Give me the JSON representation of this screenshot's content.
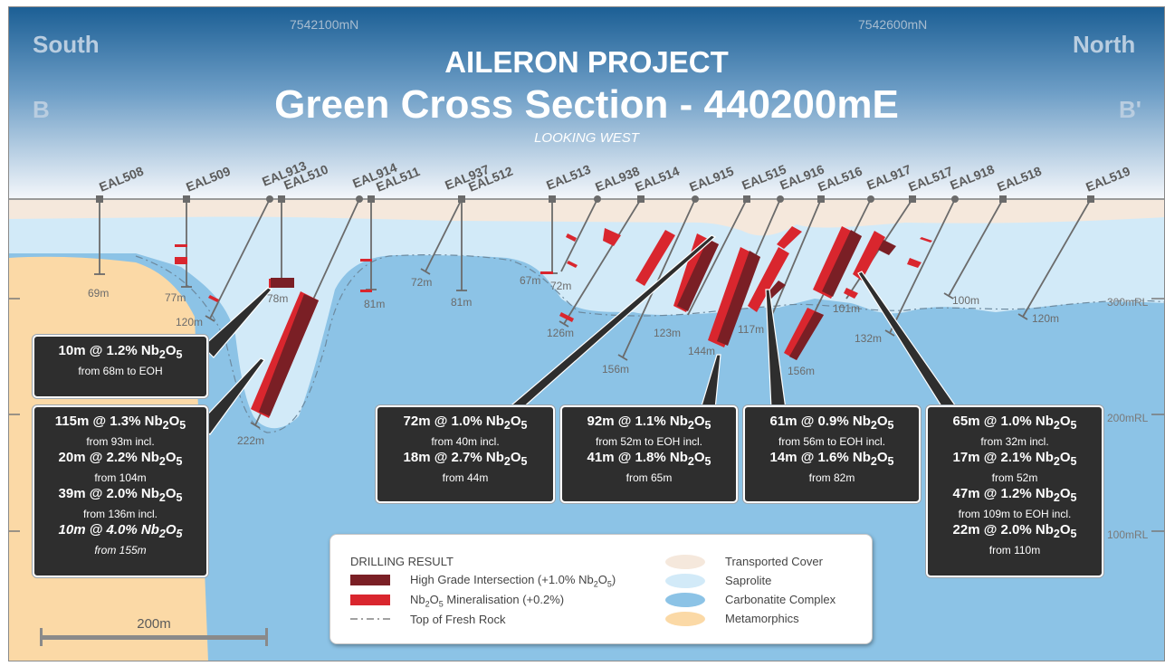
{
  "title": {
    "line1": "AILERON PROJECT",
    "line2": "Green Cross Section - 440200mE",
    "subtitle": "LOOKING WEST"
  },
  "orientation": {
    "south": "South",
    "north": "North",
    "left_point": "B",
    "right_point": "B'"
  },
  "northings": [
    "7542100mN",
    "7542600mN"
  ],
  "elevations": [
    "300mRL",
    "200mRL",
    "100mRL"
  ],
  "holes": [
    {
      "id": "EAL508",
      "depth": "69m"
    },
    {
      "id": "EAL509",
      "depth": "77m"
    },
    {
      "id": "EAL913",
      "depth": "120m"
    },
    {
      "id": "EAL510",
      "depth": "78m"
    },
    {
      "id": "EAL914",
      "depth": "222m"
    },
    {
      "id": "EAL511",
      "depth": "81m"
    },
    {
      "id": "EAL937",
      "depth": "72m"
    },
    {
      "id": "EAL512",
      "depth": "81m"
    },
    {
      "id": "EAL513",
      "depth": "67m"
    },
    {
      "id": "EAL938",
      "depth": "72m"
    },
    {
      "id": "EAL514",
      "depth": "126m"
    },
    {
      "id": "EAL915",
      "depth": "156m"
    },
    {
      "id": "EAL515",
      "depth": "123m"
    },
    {
      "id": "EAL916",
      "depth": "144m"
    },
    {
      "id": "EAL516",
      "depth": "117m"
    },
    {
      "id": "EAL917",
      "depth": "156m"
    },
    {
      "id": "EAL517",
      "depth": "101m"
    },
    {
      "id": "EAL918",
      "depth": "132m"
    },
    {
      "id": "EAL518",
      "depth": "100m"
    },
    {
      "id": "EAL519",
      "depth": "120m"
    }
  ],
  "results": {
    "box1": {
      "l1": "10m @ 1.2% Nb",
      "l1s": "2",
      "l1o": "O",
      "l1s2": "5",
      "f1": "from 68m to EOH"
    },
    "box2": {
      "rows": [
        {
          "m": "115m @ 1.3% Nb",
          "f": "from 93m incl."
        },
        {
          "m": "20m @ 2.2% Nb",
          "f": "from 104m"
        },
        {
          "m": "39m @ 2.0% Nb",
          "f": "from 136m incl."
        },
        {
          "m": "10m @ 4.0% Nb",
          "f": "from 155m"
        }
      ]
    },
    "box3": {
      "rows": [
        {
          "m": "72m @ 1.0% Nb",
          "f": "from 40m incl."
        },
        {
          "m": "18m @ 2.7% Nb",
          "f": "from 44m"
        }
      ]
    },
    "box4": {
      "rows": [
        {
          "m": "92m @ 1.1% Nb",
          "f": "from 52m to EOH incl."
        },
        {
          "m": "41m @ 1.8% Nb",
          "f": "from 65m"
        }
      ]
    },
    "box5": {
      "rows": [
        {
          "m": "61m @ 0.9% Nb",
          "f": "from 56m to EOH incl."
        },
        {
          "m": "14m @ 1.6% Nb",
          "f": "from 82m"
        }
      ]
    },
    "box6": {
      "rows": [
        {
          "m": "65m @ 1.0% Nb",
          "f": "from 32m incl."
        },
        {
          "m": "17m @ 2.1% Nb",
          "f": "from 52m"
        },
        {
          "m": "47m @ 1.2% Nb",
          "f": "from 109m to EOH incl."
        },
        {
          "m": "22m @ 2.0% Nb",
          "f": "from 110m"
        }
      ]
    },
    "oxide": {
      "sub1": "2",
      "o": "O",
      "sub2": "5"
    }
  },
  "legend": {
    "title": "DRILLING RESULT",
    "high_grade_a": "High Grade Intersection (+1.0% Nb",
    "high_grade_b": ")",
    "mineral_a": "Nb",
    "mineral_b": " Mineralisation (+0.2%)",
    "fresh_rock": "Top of Fresh Rock",
    "transported": "Transported Cover",
    "saprolite": "Saprolite",
    "carbonatite": "Carbonatite Complex",
    "metamorphics": "Metamorphics"
  },
  "scale_bar": "200m",
  "colors": {
    "high_grade": "#7a1f25",
    "mineral": "#d9262e",
    "transported": "#f5e8dc",
    "saprolite": "#d2eaf8",
    "carbonatite": "#8cc3e6",
    "metamorphics": "#fbd9a6",
    "box_bg": "#2e2e2e"
  }
}
